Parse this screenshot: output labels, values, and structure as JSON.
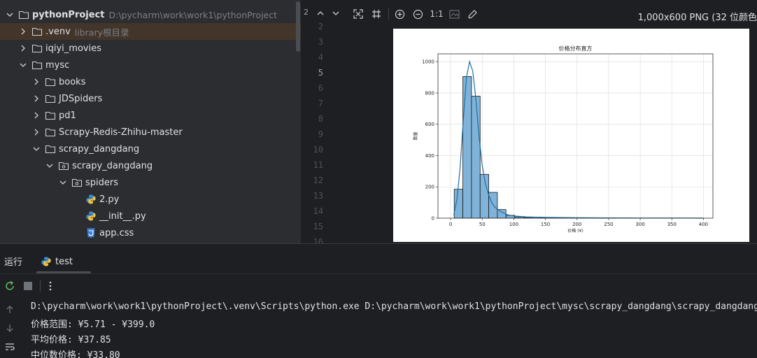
{
  "project_tree": {
    "rows": [
      {
        "label": "pythonProject",
        "hint": "D:\\pycharm\\work\\work1\\pythonProject",
        "bold": true
      },
      {
        "label": ".venv",
        "hint": "library根目录"
      },
      {
        "label": "iqiyi_movies",
        "hint": ""
      },
      {
        "label": "mysc",
        "hint": ""
      },
      {
        "label": "books",
        "hint": ""
      },
      {
        "label": "JDSpiders",
        "hint": ""
      },
      {
        "label": "pd1",
        "hint": ""
      },
      {
        "label": "Scrapy-Redis-Zhihu-master",
        "hint": ""
      },
      {
        "label": "scrapy_dangdang",
        "hint": ""
      },
      {
        "label": "scrapy_dangdang",
        "hint": ""
      },
      {
        "label": "spiders",
        "hint": ""
      },
      {
        "label": "2.py",
        "hint": ""
      },
      {
        "label": "__init__.py",
        "hint": ""
      },
      {
        "label": "app.css",
        "hint": ""
      }
    ]
  },
  "editor": {
    "top_indicator": "2",
    "line_numbers": [
      "2",
      "3",
      "4",
      "5",
      "6",
      "7",
      "8",
      "9",
      "10",
      "11",
      "12",
      "13",
      "14",
      "15",
      "16"
    ],
    "current_line": "5"
  },
  "image_viewer": {
    "zoom_label": "1:1",
    "info": "1,000x600 PNG (32 位颜色",
    "icons": [
      "fit-screen-icon",
      "grid-icon",
      "zoom-in-icon",
      "zoom-out-icon",
      "background-icon",
      "color-picker-icon"
    ]
  },
  "chart_data": {
    "type": "bar",
    "title": "价格分布直方",
    "xlabel": "价格 (¥)",
    "ylabel": "数量",
    "xlim": [
      -20,
      415
    ],
    "ylim": [
      0,
      1050
    ],
    "x_ticks": [
      0,
      50,
      100,
      150,
      200,
      250,
      300,
      350,
      400
    ],
    "y_ticks": [
      0,
      200,
      400,
      600,
      800,
      1000
    ],
    "grid": true,
    "bins": [
      {
        "x0": 5.7,
        "x1": 19.4,
        "count": 185
      },
      {
        "x0": 19.4,
        "x1": 33.0,
        "count": 905
      },
      {
        "x0": 33.0,
        "x1": 46.7,
        "count": 780
      },
      {
        "x0": 46.7,
        "x1": 60.3,
        "count": 280
      },
      {
        "x0": 60.3,
        "x1": 74.0,
        "count": 165
      },
      {
        "x0": 74.0,
        "x1": 87.6,
        "count": 55
      },
      {
        "x0": 87.6,
        "x1": 101.3,
        "count": 18
      },
      {
        "x0": 101.3,
        "x1": 114.9,
        "count": 8
      },
      {
        "x0": 114.9,
        "x1": 128.6,
        "count": 5
      },
      {
        "x0": 128.6,
        "x1": 142.2,
        "count": 6
      },
      {
        "x0": 142.2,
        "x1": 155.9,
        "count": 4
      },
      {
        "x0": 155.9,
        "x1": 169.5,
        "count": 3
      },
      {
        "x0": 169.5,
        "x1": 183.2,
        "count": 2
      },
      {
        "x0": 183.2,
        "x1": 196.8,
        "count": 2
      },
      {
        "x0": 196.8,
        "x1": 210.5,
        "count": 2
      },
      {
        "x0": 210.5,
        "x1": 224.1,
        "count": 1
      },
      {
        "x0": 224.1,
        "x1": 237.8,
        "count": 1
      },
      {
        "x0": 237.8,
        "x1": 251.4,
        "count": 1
      },
      {
        "x0": 251.4,
        "x1": 265.1,
        "count": 1
      },
      {
        "x0": 265.1,
        "x1": 278.7,
        "count": 1
      },
      {
        "x0": 278.7,
        "x1": 292.4,
        "count": 1
      },
      {
        "x0": 292.4,
        "x1": 306.0,
        "count": 1
      },
      {
        "x0": 306.0,
        "x1": 319.7,
        "count": 1
      },
      {
        "x0": 319.7,
        "x1": 333.3,
        "count": 1
      },
      {
        "x0": 333.3,
        "x1": 347.0,
        "count": 1
      },
      {
        "x0": 347.0,
        "x1": 360.6,
        "count": 1
      },
      {
        "x0": 360.6,
        "x1": 374.3,
        "count": 1
      },
      {
        "x0": 374.3,
        "x1": 387.9,
        "count": 1
      },
      {
        "x0": 387.9,
        "x1": 399.0,
        "count": 1
      }
    ],
    "kde": [
      [
        5,
        20
      ],
      [
        10,
        120
      ],
      [
        15,
        320
      ],
      [
        20,
        620
      ],
      [
        25,
        900
      ],
      [
        30,
        1000
      ],
      [
        35,
        940
      ],
      [
        40,
        760
      ],
      [
        45,
        520
      ],
      [
        50,
        340
      ],
      [
        55,
        220
      ],
      [
        60,
        150
      ],
      [
        65,
        100
      ],
      [
        70,
        70
      ],
      [
        80,
        40
      ],
      [
        90,
        22
      ],
      [
        100,
        14
      ],
      [
        120,
        8
      ],
      [
        150,
        5
      ],
      [
        200,
        3
      ],
      [
        250,
        2
      ],
      [
        300,
        1
      ],
      [
        350,
        1
      ],
      [
        400,
        0
      ]
    ],
    "bar_color": "#7fb3d9",
    "line_color": "#1f6f9f"
  },
  "run_panel": {
    "title": "运行",
    "tab": "test",
    "console_lines": [
      "D:\\pycharm\\work\\work1\\pythonProject\\.venv\\Scripts\\python.exe D:\\pycharm\\work\\work1\\pythonProject\\mysc\\scrapy_dangdang\\scrapy_dangdang",
      "价格范围: ¥5.71 - ¥399.0",
      "平均价格: ¥37.85",
      "中位数价格: ¥33.80"
    ]
  }
}
